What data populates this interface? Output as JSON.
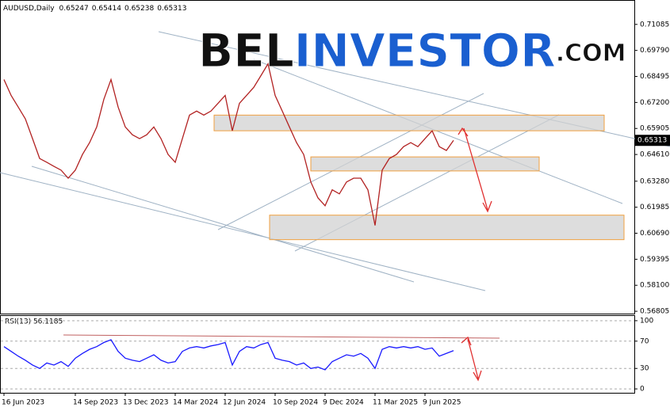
{
  "watermark": {
    "parts": [
      "BEL",
      "INVESTOR",
      ".COM"
    ]
  },
  "chart_data": [
    {
      "type": "line",
      "title": "AUDUSD,Daily",
      "ohlc": [
        0.65247,
        0.65414,
        0.65238,
        0.65313
      ],
      "categories": [
        "16 Jun 2023",
        null,
        null,
        null,
        null,
        null,
        null,
        null,
        null,
        null,
        "14 Sep 2023",
        null,
        null,
        null,
        null,
        null,
        null,
        "13 Dec 2023",
        null,
        null,
        null,
        null,
        null,
        null,
        "14 Mar 2024",
        null,
        null,
        null,
        null,
        null,
        null,
        "12 Jun 2024",
        null,
        null,
        null,
        null,
        null,
        null,
        "10 Sep 2024",
        null,
        null,
        null,
        null,
        null,
        null,
        "9 Dec 2024",
        null,
        null,
        null,
        null,
        null,
        null,
        "11 Mar 2025",
        null,
        null,
        null,
        null,
        null,
        null,
        "9 Jun 2025",
        null,
        null,
        null,
        null
      ],
      "series": [
        {
          "color": "#b22222",
          "values": [
            0.6834,
            0.6755,
            0.6697,
            0.6638,
            0.654,
            0.6441,
            0.6422,
            0.6402,
            0.6383,
            0.6343,
            0.6383,
            0.6461,
            0.652,
            0.6598,
            0.6736,
            0.6834,
            0.6697,
            0.6598,
            0.6559,
            0.654,
            0.6559,
            0.6598,
            0.654,
            0.6461,
            0.6422,
            0.654,
            0.6657,
            0.6677,
            0.6657,
            0.6677,
            0.6716,
            0.6755,
            0.6579,
            0.6716,
            0.6755,
            0.6795,
            0.6853,
            0.6912,
            0.6755,
            0.6677,
            0.6598,
            0.652,
            0.6461,
            0.6324,
            0.6245,
            0.6206,
            0.6285,
            0.6265,
            0.6324,
            0.6343,
            0.6343,
            0.6285,
            0.6108,
            0.6383,
            0.6441,
            0.6461,
            0.65,
            0.652,
            0.65,
            0.654,
            0.6579,
            0.65,
            0.6481,
            0.65313
          ]
        }
      ],
      "ylim": [
        0.5669,
        0.7226
      ],
      "yticks": [
        0.71085,
        {
          "value": 0.6979,
          "label": "0.69790"
        },
        0.68495,
        {
          "value": 0.672,
          "label": "0.67200"
        },
        0.65905,
        {
          "value": 0.6461,
          "label": "0.64610"
        },
        {
          "value": 0.6328,
          "label": "0.63280"
        },
        0.61985,
        {
          "value": 0.6069,
          "label": "0.60690"
        },
        0.59395,
        {
          "value": 0.581,
          "label": "0.58100"
        },
        0.56805
      ],
      "zones": [
        {
          "low": 0.6579,
          "high": 0.6657
        },
        {
          "low": 0.6379,
          "high": 0.6449
        },
        {
          "low": 0.6037,
          "high": 0.6159
        }
      ]
    },
    {
      "type": "line",
      "title": "RSI(13) 56.1185",
      "series": [
        {
          "color": "#1a1aff",
          "values": [
            62,
            55,
            48,
            42,
            35,
            30,
            38,
            35,
            40,
            33,
            45,
            52,
            58,
            62,
            68,
            72,
            55,
            45,
            42,
            40,
            45,
            50,
            42,
            38,
            40,
            55,
            60,
            62,
            60,
            63,
            65,
            68,
            35,
            55,
            62,
            60,
            65,
            68,
            45,
            42,
            40,
            35,
            38,
            30,
            32,
            28,
            40,
            45,
            50,
            48,
            52,
            45,
            30,
            58,
            62,
            60,
            62,
            60,
            62,
            58,
            60,
            48,
            52,
            56.1185
          ]
        }
      ],
      "ylim": [
        -5.7,
        106.9
      ],
      "yticks": [
        0,
        30,
        70,
        100
      ],
      "grid": true
    }
  ]
}
